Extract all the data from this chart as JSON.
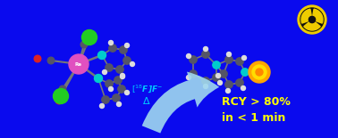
{
  "bg_color": "#0a0aee",
  "arrow_color": "#a0d8ef",
  "arrow_label_color": "#00ccff",
  "rcy_color": "#ffff00",
  "rcy_line1": "RCY > 80%",
  "rcy_line2": "in < 1 min",
  "figsize": [
    3.78,
    1.55
  ],
  "dpi": 100,
  "bond_color": "#777777",
  "carbon_color": "#555566",
  "hydrogen_color": "#dddddd",
  "nitrogen_color": "#00cccc",
  "re_color": "#e050c0",
  "cl_color": "#22cc22",
  "oxygen_color": "#dd2222",
  "f18_outer": "#ffa500",
  "f18_mid": "#ffdd00",
  "f18_inner": "#ff8800",
  "rad_yellow": "#eecc00",
  "rad_black": "#111111"
}
